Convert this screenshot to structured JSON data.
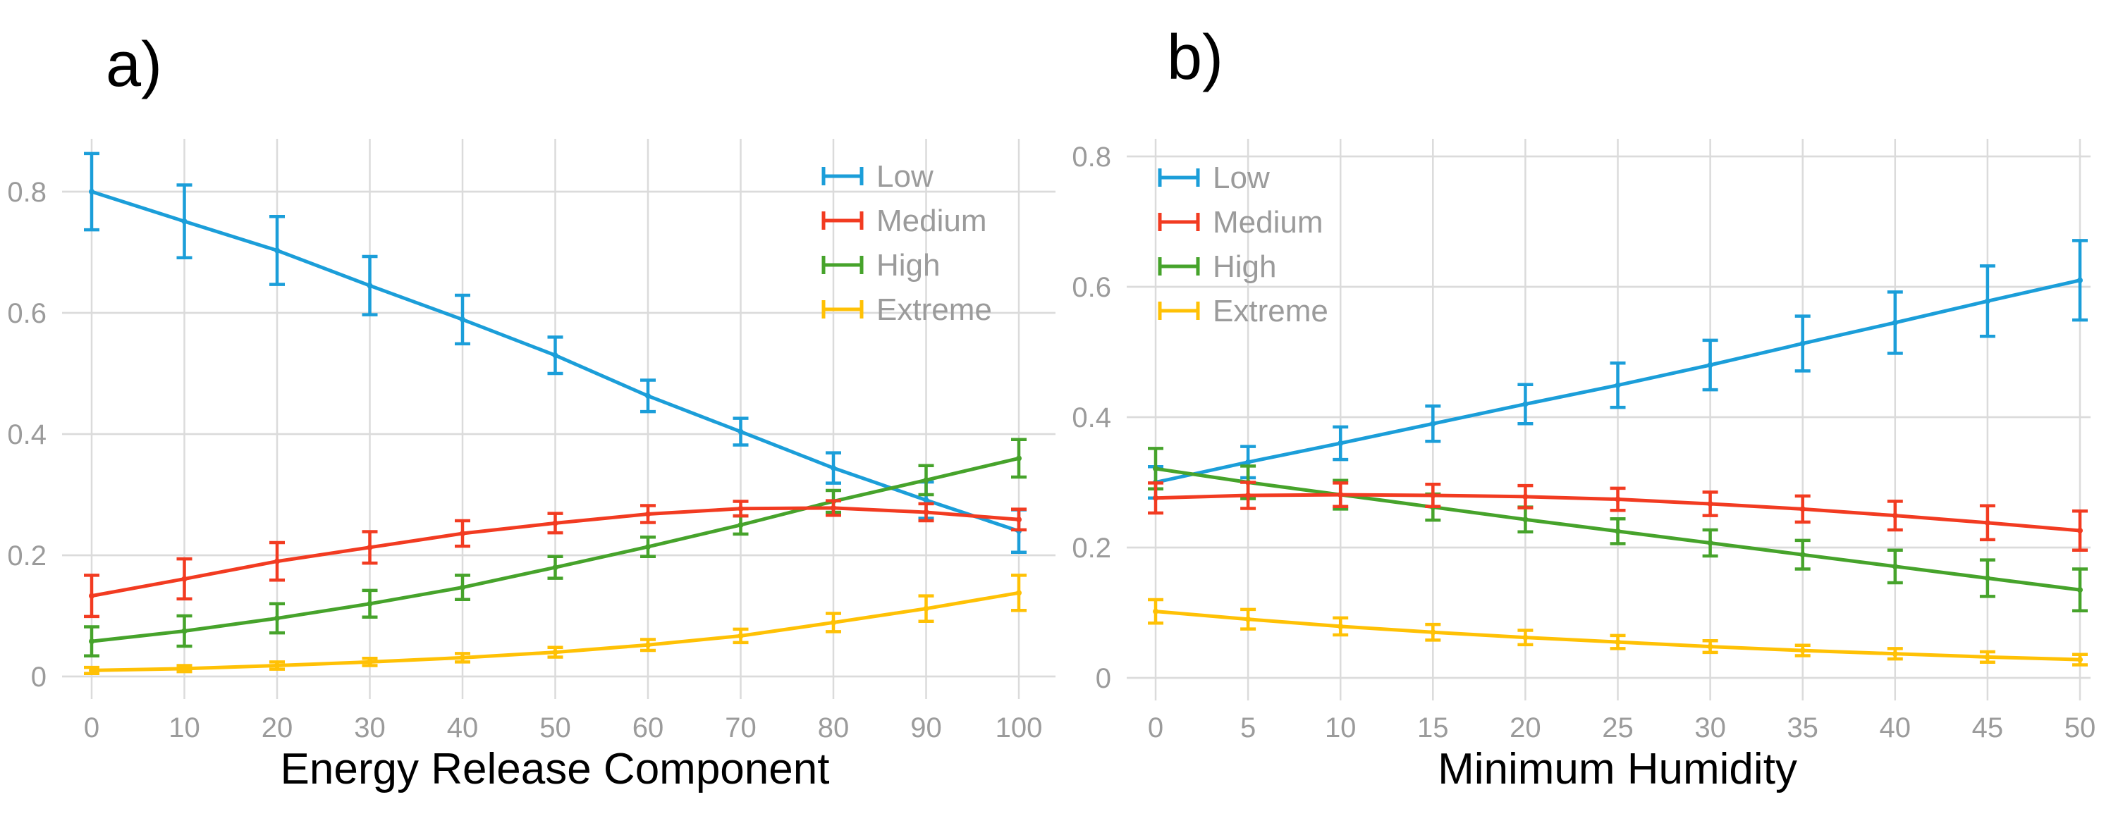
{
  "figure": {
    "background_color": "#ffffff",
    "grid_color": "#dbdbdb",
    "tick_text_color": "#9b9b9b",
    "title_text_color": "#000000",
    "legend_labels": [
      "Low",
      "Medium",
      "High",
      "Extreme"
    ]
  },
  "chart_data": [
    {
      "type": "line",
      "panel_label": "a)",
      "xlabel": "Energy Release Component",
      "ylabel": "",
      "x": [
        0,
        10,
        20,
        30,
        40,
        50,
        60,
        70,
        80,
        90,
        100
      ],
      "x_tick_labels": [
        "0",
        "10",
        "20",
        "30",
        "40",
        "50",
        "60",
        "70",
        "80",
        "90",
        "100"
      ],
      "y_ticks": [
        0,
        0.2,
        0.4,
        0.6,
        0.8
      ],
      "y_tick_labels": [
        "0",
        "0.2",
        "0.4",
        "0.6",
        "0.8"
      ],
      "ylim": [
        0,
        0.89
      ],
      "grid": true,
      "legend_position": "top-right",
      "series": [
        {
          "name": "Low",
          "color": "#1b9ed9",
          "values": [
            0.8,
            0.751,
            0.703,
            0.645,
            0.589,
            0.53,
            0.463,
            0.404,
            0.344,
            0.291,
            0.24
          ],
          "errors": [
            0.063,
            0.06,
            0.056,
            0.048,
            0.04,
            0.03,
            0.026,
            0.022,
            0.025,
            0.03,
            0.035
          ]
        },
        {
          "name": "Medium",
          "color": "#f23b21",
          "values": [
            0.133,
            0.161,
            0.19,
            0.213,
            0.236,
            0.253,
            0.268,
            0.277,
            0.278,
            0.271,
            0.259
          ],
          "errors": [
            0.034,
            0.033,
            0.031,
            0.026,
            0.021,
            0.016,
            0.014,
            0.012,
            0.012,
            0.014,
            0.017
          ]
        },
        {
          "name": "High",
          "color": "#46a32b",
          "values": [
            0.058,
            0.075,
            0.096,
            0.12,
            0.147,
            0.18,
            0.214,
            0.25,
            0.289,
            0.324,
            0.36
          ],
          "errors": [
            0.024,
            0.025,
            0.024,
            0.022,
            0.02,
            0.018,
            0.016,
            0.015,
            0.018,
            0.024,
            0.031
          ]
        },
        {
          "name": "Extreme",
          "color": "#ffc105",
          "values": [
            0.01,
            0.013,
            0.018,
            0.024,
            0.031,
            0.04,
            0.052,
            0.067,
            0.089,
            0.112,
            0.138
          ],
          "errors": [
            0.005,
            0.005,
            0.006,
            0.006,
            0.007,
            0.008,
            0.009,
            0.011,
            0.015,
            0.021,
            0.029
          ]
        }
      ]
    },
    {
      "type": "line",
      "panel_label": "b)",
      "xlabel": "Minimum Humidity",
      "ylabel": "",
      "x": [
        0,
        5,
        10,
        15,
        20,
        25,
        30,
        35,
        40,
        45,
        50
      ],
      "x_tick_labels": [
        "0",
        "5",
        "10",
        "15",
        "20",
        "25",
        "30",
        "35",
        "40",
        "45",
        "50"
      ],
      "y_ticks": [
        0,
        0.2,
        0.4,
        0.6,
        0.8
      ],
      "y_tick_labels": [
        "0",
        "0.2",
        "0.4",
        "0.6",
        "0.8"
      ],
      "ylim": [
        0,
        0.87
      ],
      "grid": true,
      "legend_position": "top-left",
      "series": [
        {
          "name": "Low",
          "color": "#1b9ed9",
          "values": [
            0.3,
            0.331,
            0.36,
            0.39,
            0.42,
            0.449,
            0.48,
            0.513,
            0.545,
            0.578,
            0.61
          ],
          "errors": [
            0.024,
            0.024,
            0.025,
            0.027,
            0.03,
            0.034,
            0.038,
            0.042,
            0.047,
            0.054,
            0.061
          ]
        },
        {
          "name": "Medium",
          "color": "#f23b21",
          "values": [
            0.276,
            0.28,
            0.281,
            0.28,
            0.278,
            0.274,
            0.267,
            0.259,
            0.249,
            0.238,
            0.226
          ],
          "errors": [
            0.023,
            0.02,
            0.018,
            0.017,
            0.017,
            0.017,
            0.018,
            0.02,
            0.022,
            0.026,
            0.03
          ]
        },
        {
          "name": "High",
          "color": "#46a32b",
          "values": [
            0.321,
            0.3,
            0.281,
            0.262,
            0.243,
            0.225,
            0.207,
            0.189,
            0.171,
            0.153,
            0.135
          ],
          "errors": [
            0.031,
            0.025,
            0.022,
            0.02,
            0.019,
            0.019,
            0.02,
            0.022,
            0.025,
            0.028,
            0.032
          ]
        },
        {
          "name": "Extreme",
          "color": "#ffc105",
          "values": [
            0.102,
            0.09,
            0.079,
            0.07,
            0.062,
            0.055,
            0.048,
            0.042,
            0.037,
            0.032,
            0.028
          ],
          "errors": [
            0.018,
            0.015,
            0.013,
            0.012,
            0.011,
            0.01,
            0.009,
            0.008,
            0.008,
            0.008,
            0.008
          ]
        }
      ]
    }
  ]
}
